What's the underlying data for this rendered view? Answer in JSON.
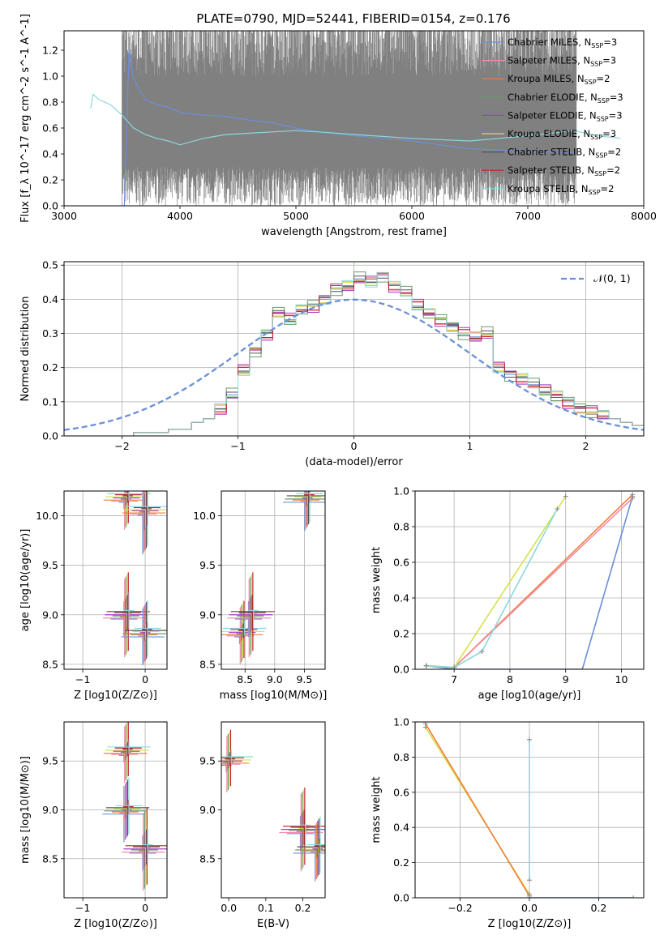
{
  "figure": {
    "title": "PLATE=0790, MJD=52441, FIBERID=0154, z=0.176"
  },
  "colors": {
    "Chabrier MILES": "#6b8fd8",
    "Salpeter MILES": "#f28ca8",
    "Kroupa MILES": "#f07f3c",
    "Chabrier ELODIE": "#6a9a6a",
    "Salpeter ELODIE": "#a33cc0",
    "Kroupa ELODIE": "#d6e04a",
    "Chabrier STELIB": "#555555",
    "Salpeter STELIB": "#c42020",
    "Kroupa STELIB": "#8cd8dc",
    "data": "#808080",
    "normal": "#6b8fd8"
  },
  "chart_data": [
    {
      "id": "spectrum",
      "type": "line",
      "xlabel": "wavelength [Angstrom, rest frame]",
      "ylabel": "Flux [f_λ 10^-17 erg cm^-2 s^-1 A^-1]",
      "xlim": [
        3000,
        8000
      ],
      "ylim": [
        0,
        1.35
      ],
      "xticks": [
        "3000",
        "4000",
        "5000",
        "6000",
        "7000",
        "8000"
      ],
      "yticks": [
        "0.0",
        "0.2",
        "0.4",
        "0.6",
        "0.8",
        "1.0",
        "1.2"
      ],
      "grid": false,
      "legend": {
        "placement": "right",
        "entries": [
          "Chabrier MILES, N_SSP=3",
          "Salpeter MILES, N_SSP=3",
          "Kroupa MILES, N_SSP=2",
          "Chabrier ELODIE, N_SSP=3",
          "Salpeter ELODIE, N_SSP=3",
          "Kroupa ELODIE, N_SSP=3",
          "Chabrier STELIB, N_SSP=2",
          "Salpeter STELIB, N_SSP=2",
          "Kroupa STELIB, N_SSP=2"
        ]
      },
      "data_noisy_range": [
        3500,
        7420
      ],
      "series": [
        {
          "name": "Chabrier MILES",
          "x": [
            3520,
            3560,
            3600,
            3700,
            3800,
            3900,
            4000,
            4200,
            4400,
            4600,
            4800,
            5000,
            5200,
            5500,
            6000,
            6500,
            7000,
            7400
          ],
          "y": [
            0.0,
            1.2,
            0.98,
            0.82,
            0.78,
            0.76,
            0.72,
            0.7,
            0.69,
            0.66,
            0.64,
            0.6,
            0.57,
            0.54,
            0.5,
            0.44,
            0.42,
            0.41
          ]
        },
        {
          "name": "Kroupa STELIB",
          "x": [
            3230,
            3250,
            3300,
            3400,
            3500,
            3600,
            3700,
            3800,
            3900,
            4000,
            4200,
            4400,
            4600,
            4800,
            5000,
            5200,
            5500,
            6000,
            6500,
            7000,
            7400,
            7600,
            7800
          ],
          "y": [
            0.75,
            0.86,
            0.82,
            0.78,
            0.7,
            0.6,
            0.55,
            0.52,
            0.5,
            0.47,
            0.52,
            0.55,
            0.56,
            0.57,
            0.58,
            0.57,
            0.55,
            0.52,
            0.5,
            0.54,
            0.58,
            0.54,
            0.52
          ]
        }
      ]
    },
    {
      "id": "residuals",
      "type": "line",
      "xlabel": "(data-model)/error",
      "ylabel": "Normed distribution",
      "xlim": [
        -2.5,
        2.5
      ],
      "ylim": [
        0,
        0.51
      ],
      "xticks": [
        "−2",
        "−1",
        "0",
        "1",
        "2"
      ],
      "yticks": [
        "0.0",
        "0.1",
        "0.2",
        "0.3",
        "0.4",
        "0.5"
      ],
      "grid": true,
      "legend": {
        "placement": "top-right",
        "entries": [
          "𝒩(0, 1)"
        ]
      },
      "bin_edges_start": -2.5,
      "bin_width": 0.1,
      "histogram_values": [
        0,
        0,
        0,
        0,
        0,
        0,
        0.01,
        0.01,
        0.01,
        0.02,
        0.02,
        0.04,
        0.05,
        0.08,
        0.12,
        0.19,
        0.25,
        0.3,
        0.36,
        0.34,
        0.37,
        0.38,
        0.4,
        0.43,
        0.44,
        0.46,
        0.45,
        0.47,
        0.44,
        0.42,
        0.38,
        0.36,
        0.34,
        0.32,
        0.3,
        0.29,
        0.3,
        0.2,
        0.18,
        0.17,
        0.15,
        0.13,
        0.12,
        0.1,
        0.08,
        0.07,
        0.06,
        0.05,
        0.04,
        0.03
      ]
    },
    {
      "id": "age-vs-Z",
      "type": "scatter",
      "xlabel": "Z [log10(Z/Z⊙)]",
      "ylabel": "age [log10(age/yr)]",
      "xlim": [
        -1.3,
        0.35
      ],
      "ylim": [
        8.45,
        10.25
      ],
      "xticks": [
        "−1",
        "0"
      ],
      "yticks": [
        "8.5",
        "9.0",
        "9.5",
        "10.0"
      ],
      "grid": true,
      "points": [
        {
          "x": -0.3,
          "y": 10.18
        },
        {
          "x": -0.3,
          "y": 9.0
        },
        {
          "x": 0.0,
          "y": 8.82
        },
        {
          "x": 0.0,
          "y": 10.05
        }
      ]
    },
    {
      "id": "age-vs-mass",
      "type": "scatter",
      "xlabel": "mass [log10(M/M⊙)]",
      "ylabel": "",
      "xlim": [
        8.1,
        9.85
      ],
      "ylim": [
        8.45,
        10.25
      ],
      "xticks": [
        "8.5",
        "9.0",
        "9.5"
      ],
      "yticks": [
        "8.5",
        "9.0",
        "9.5",
        "10.0"
      ],
      "grid": true,
      "points": [
        {
          "x": 8.45,
          "y": 8.82
        },
        {
          "x": 8.6,
          "y": 9.0
        },
        {
          "x": 9.55,
          "y": 10.18
        }
      ]
    },
    {
      "id": "mass-weight-vs-age",
      "type": "line",
      "xlabel": "age [log10(age/yr)]",
      "ylabel": "mass weight",
      "xlim": [
        6.3,
        10.4
      ],
      "ylim": [
        0,
        1.0
      ],
      "xticks": [
        "7",
        "8",
        "9",
        "10"
      ],
      "yticks": [
        "0.0",
        "0.2",
        "0.4",
        "0.6",
        "0.8",
        "1.0"
      ],
      "grid": true,
      "series": [
        {
          "name": "Chabrier MILES",
          "x": [
            6.5,
            7.0,
            9.3,
            10.2
          ],
          "y": [
            0.02,
            0.0,
            0.0,
            0.97
          ]
        },
        {
          "name": "Kroupa MILES",
          "x": [
            6.5,
            7.0,
            10.2
          ],
          "y": [
            0.02,
            0.01,
            0.98
          ]
        },
        {
          "name": "Salpeter MILES",
          "x": [
            6.5,
            7.0,
            10.2
          ],
          "y": [
            0.02,
            0.01,
            0.96
          ]
        },
        {
          "name": "Kroupa ELODIE",
          "x": [
            6.5,
            7.0,
            9.0
          ],
          "y": [
            0.02,
            0.01,
            0.97
          ]
        },
        {
          "name": "Kroupa STELIB",
          "x": [
            6.5,
            7.0,
            7.5,
            8.85
          ],
          "y": [
            0.02,
            0.01,
            0.1,
            0.9
          ]
        }
      ]
    },
    {
      "id": "mass-vs-Z",
      "type": "scatter",
      "xlabel": "Z [log10(Z/Z⊙)]",
      "ylabel": "mass [log10(M/M⊙)]",
      "xlim": [
        -1.3,
        0.35
      ],
      "ylim": [
        8.1,
        9.9
      ],
      "xticks": [
        "−1",
        "0"
      ],
      "yticks": [
        "8.5",
        "9.0",
        "9.5"
      ],
      "grid": true,
      "points": [
        {
          "x": -0.3,
          "y": 9.6
        },
        {
          "x": 0.0,
          "y": 8.6
        },
        {
          "x": -0.3,
          "y": 9.0
        }
      ]
    },
    {
      "id": "mass-vs-EBV",
      "type": "scatter",
      "xlabel": "E(B-V)",
      "ylabel": "",
      "xlim": [
        -0.02,
        0.26
      ],
      "ylim": [
        8.1,
        9.9
      ],
      "xticks": [
        "0.0",
        "0.1",
        "0.2"
      ],
      "yticks": [
        "8.5",
        "9.0",
        "9.5"
      ],
      "grid": false,
      "points": [
        {
          "x": 0.0,
          "y": 9.5
        },
        {
          "x": 0.2,
          "y": 8.8
        },
        {
          "x": 0.24,
          "y": 8.6
        }
      ]
    },
    {
      "id": "mass-weight-vs-Z",
      "type": "line",
      "xlabel": "Z [log10(Z/Z⊙)]",
      "ylabel": "mass weight",
      "xlim": [
        -0.33,
        0.33
      ],
      "ylim": [
        0,
        1.0
      ],
      "xticks": [
        "−0.2",
        "0.0",
        "0.2"
      ],
      "yticks": [
        "0.0",
        "0.2",
        "0.4",
        "0.6",
        "0.8",
        "1.0"
      ],
      "grid": true,
      "series": [
        {
          "name": "Kroupa ELODIE",
          "x": [
            -0.3,
            0.0
          ],
          "y": [
            0.97,
            0.02
          ]
        },
        {
          "name": "Kroupa MILES",
          "x": [
            -0.3,
            0.0
          ],
          "y": [
            0.99,
            0.01
          ]
        },
        {
          "name": "Chabrier MILES",
          "x": [
            0.0,
            0.3
          ],
          "y": [
            0.0,
            0.0
          ]
        },
        {
          "name": "Kroupa STELIB",
          "x": [
            0.0,
            0.0
          ],
          "y": [
            0.1,
            0.9
          ]
        }
      ]
    }
  ]
}
